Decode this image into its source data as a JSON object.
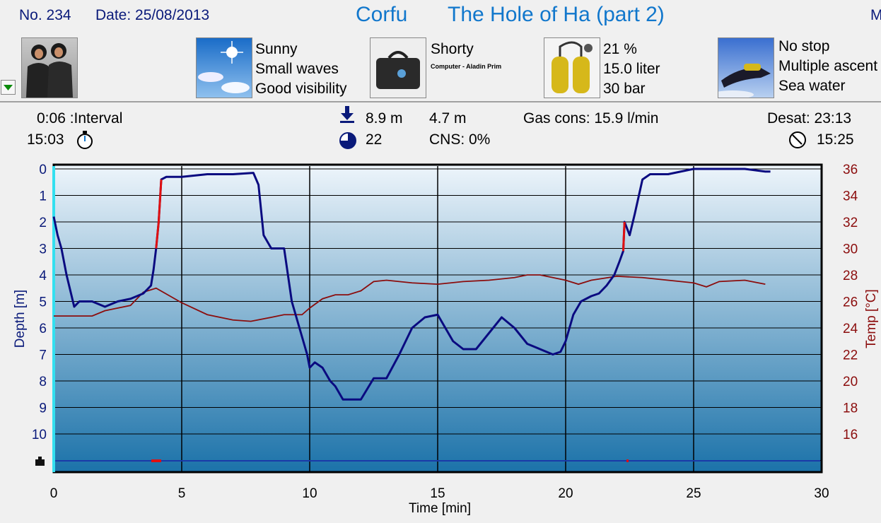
{
  "header": {
    "dive_no": "No. 234",
    "date": "Date: 25/08/2013",
    "location": "Corfu",
    "site": "The Hole of Ha (part 2)",
    "right_cut": "M"
  },
  "info": {
    "weather_lines": [
      "Sunny",
      "Small waves",
      "Good visibility"
    ],
    "suit_label": "Shorty",
    "computer_label": "Computer - Aladin Prim",
    "gas_lines": [
      "21 %",
      "15.0 liter",
      "30 bar"
    ],
    "dive_type_lines": [
      "No stop",
      "Multiple ascent",
      "Sea water"
    ]
  },
  "stats": {
    "interval": "0:06 :Interval",
    "time_in": "15:03",
    "max_depth": "8.9 m",
    "avg_depth": "4.7 m",
    "gas_cons": "Gas cons: 15.9 l/min",
    "desat": "Desat: 23:13",
    "duration": "22",
    "cns": "CNS:  0%",
    "time_out": "15:25"
  },
  "colors": {
    "depth_line": "#0a0a80",
    "temp_line": "#8b0d0d",
    "ascent_warning": "#e01010",
    "gradient_top": "#eef5fb",
    "gradient_bottom": "#1b72a9",
    "title": "#1177cc"
  },
  "chart_data": {
    "type": "line",
    "xlabel": "Time [min]",
    "ylabel": "Depth [m]",
    "y2label": "Temp [°C]",
    "x_ticks": [
      "0",
      "5",
      "10",
      "15",
      "20",
      "25",
      "30"
    ],
    "depth_ticks": [
      "0",
      "1",
      "2",
      "3",
      "4",
      "5",
      "6",
      "7",
      "8",
      "9",
      "10"
    ],
    "temp_ticks": [
      "36",
      "34",
      "32",
      "30",
      "28",
      "26",
      "24",
      "22",
      "20",
      "18",
      "16"
    ],
    "xlim": [
      0,
      30
    ],
    "depth_lim": [
      0,
      11
    ],
    "temp_lim": [
      14,
      36
    ],
    "grid": true,
    "series": [
      {
        "name": "Depth",
        "unit": "m",
        "x": [
          0,
          0.15,
          0.3,
          0.5,
          0.8,
          1.0,
          1.5,
          2.0,
          2.5,
          3.0,
          3.5,
          3.8,
          3.9,
          4.0,
          4.1,
          4.2,
          4.4,
          5.0,
          6.0,
          7.0,
          7.8,
          8.0,
          8.2,
          8.5,
          9.0,
          9.3,
          9.6,
          9.9,
          10.0,
          10.2,
          10.5,
          10.8,
          11.0,
          11.3,
          11.5,
          12.0,
          12.5,
          13.0,
          13.5,
          14.0,
          14.5,
          15.0,
          15.3,
          15.6,
          16.0,
          16.5,
          17.0,
          17.5,
          18.0,
          18.5,
          19.0,
          19.5,
          19.8,
          20.0,
          20.3,
          20.6,
          21.0,
          21.3,
          21.6,
          21.9,
          22.1,
          22.25,
          22.3,
          22.5,
          22.7,
          23.0,
          23.3,
          24.0,
          24.5,
          25.0,
          26.0,
          27.0,
          27.8,
          28.0
        ],
        "y": [
          1.8,
          2.5,
          3.0,
          4.0,
          5.2,
          5.0,
          5.0,
          5.2,
          5.0,
          4.9,
          4.7,
          4.4,
          3.8,
          3.0,
          2.0,
          0.4,
          0.3,
          0.3,
          0.2,
          0.2,
          0.15,
          0.6,
          2.5,
          3.0,
          3.0,
          5.0,
          6.0,
          7.0,
          7.5,
          7.3,
          7.5,
          8.0,
          8.2,
          8.7,
          8.7,
          8.7,
          7.9,
          7.9,
          7.0,
          6.0,
          5.6,
          5.5,
          6.0,
          6.5,
          6.8,
          6.8,
          6.2,
          5.6,
          6.0,
          6.6,
          6.8,
          7.0,
          6.9,
          6.5,
          5.5,
          5.0,
          4.8,
          4.7,
          4.4,
          4.0,
          3.5,
          3.1,
          2.0,
          2.5,
          1.7,
          0.4,
          0.2,
          0.2,
          0.1,
          0.0,
          0.0,
          0.0,
          0.1,
          0.1
        ]
      },
      {
        "name": "Temp",
        "unit": "°C",
        "x": [
          0,
          1.5,
          2.0,
          3.0,
          3.5,
          4.0,
          5.0,
          6.0,
          7.0,
          7.7,
          8.5,
          9.0,
          9.7,
          10.0,
          10.5,
          11.0,
          11.5,
          12.0,
          12.5,
          13.0,
          14.0,
          15.0,
          16.0,
          17.0,
          18.0,
          18.5,
          19.0,
          20.0,
          20.5,
          21.0,
          22.0,
          23.0,
          24.0,
          25.0,
          25.5,
          26.0,
          27.0,
          27.8
        ],
        "y": [
          24.9,
          24.9,
          25.3,
          25.7,
          26.7,
          27.0,
          25.9,
          25.0,
          24.6,
          24.5,
          24.8,
          25.0,
          25.0,
          25.5,
          26.2,
          26.5,
          26.5,
          26.8,
          27.5,
          27.6,
          27.4,
          27.3,
          27.5,
          27.6,
          27.8,
          28.0,
          28.0,
          27.6,
          27.3,
          27.6,
          27.9,
          27.8,
          27.6,
          27.4,
          27.1,
          27.5,
          27.6,
          27.3
        ]
      },
      {
        "name": "Ascent warning",
        "unit": "m",
        "x": [
          4.0,
          4.1,
          4.2,
          22.25,
          22.3
        ],
        "y": [
          3.0,
          2.0,
          0.4,
          3.1,
          2.0
        ]
      }
    ]
  }
}
